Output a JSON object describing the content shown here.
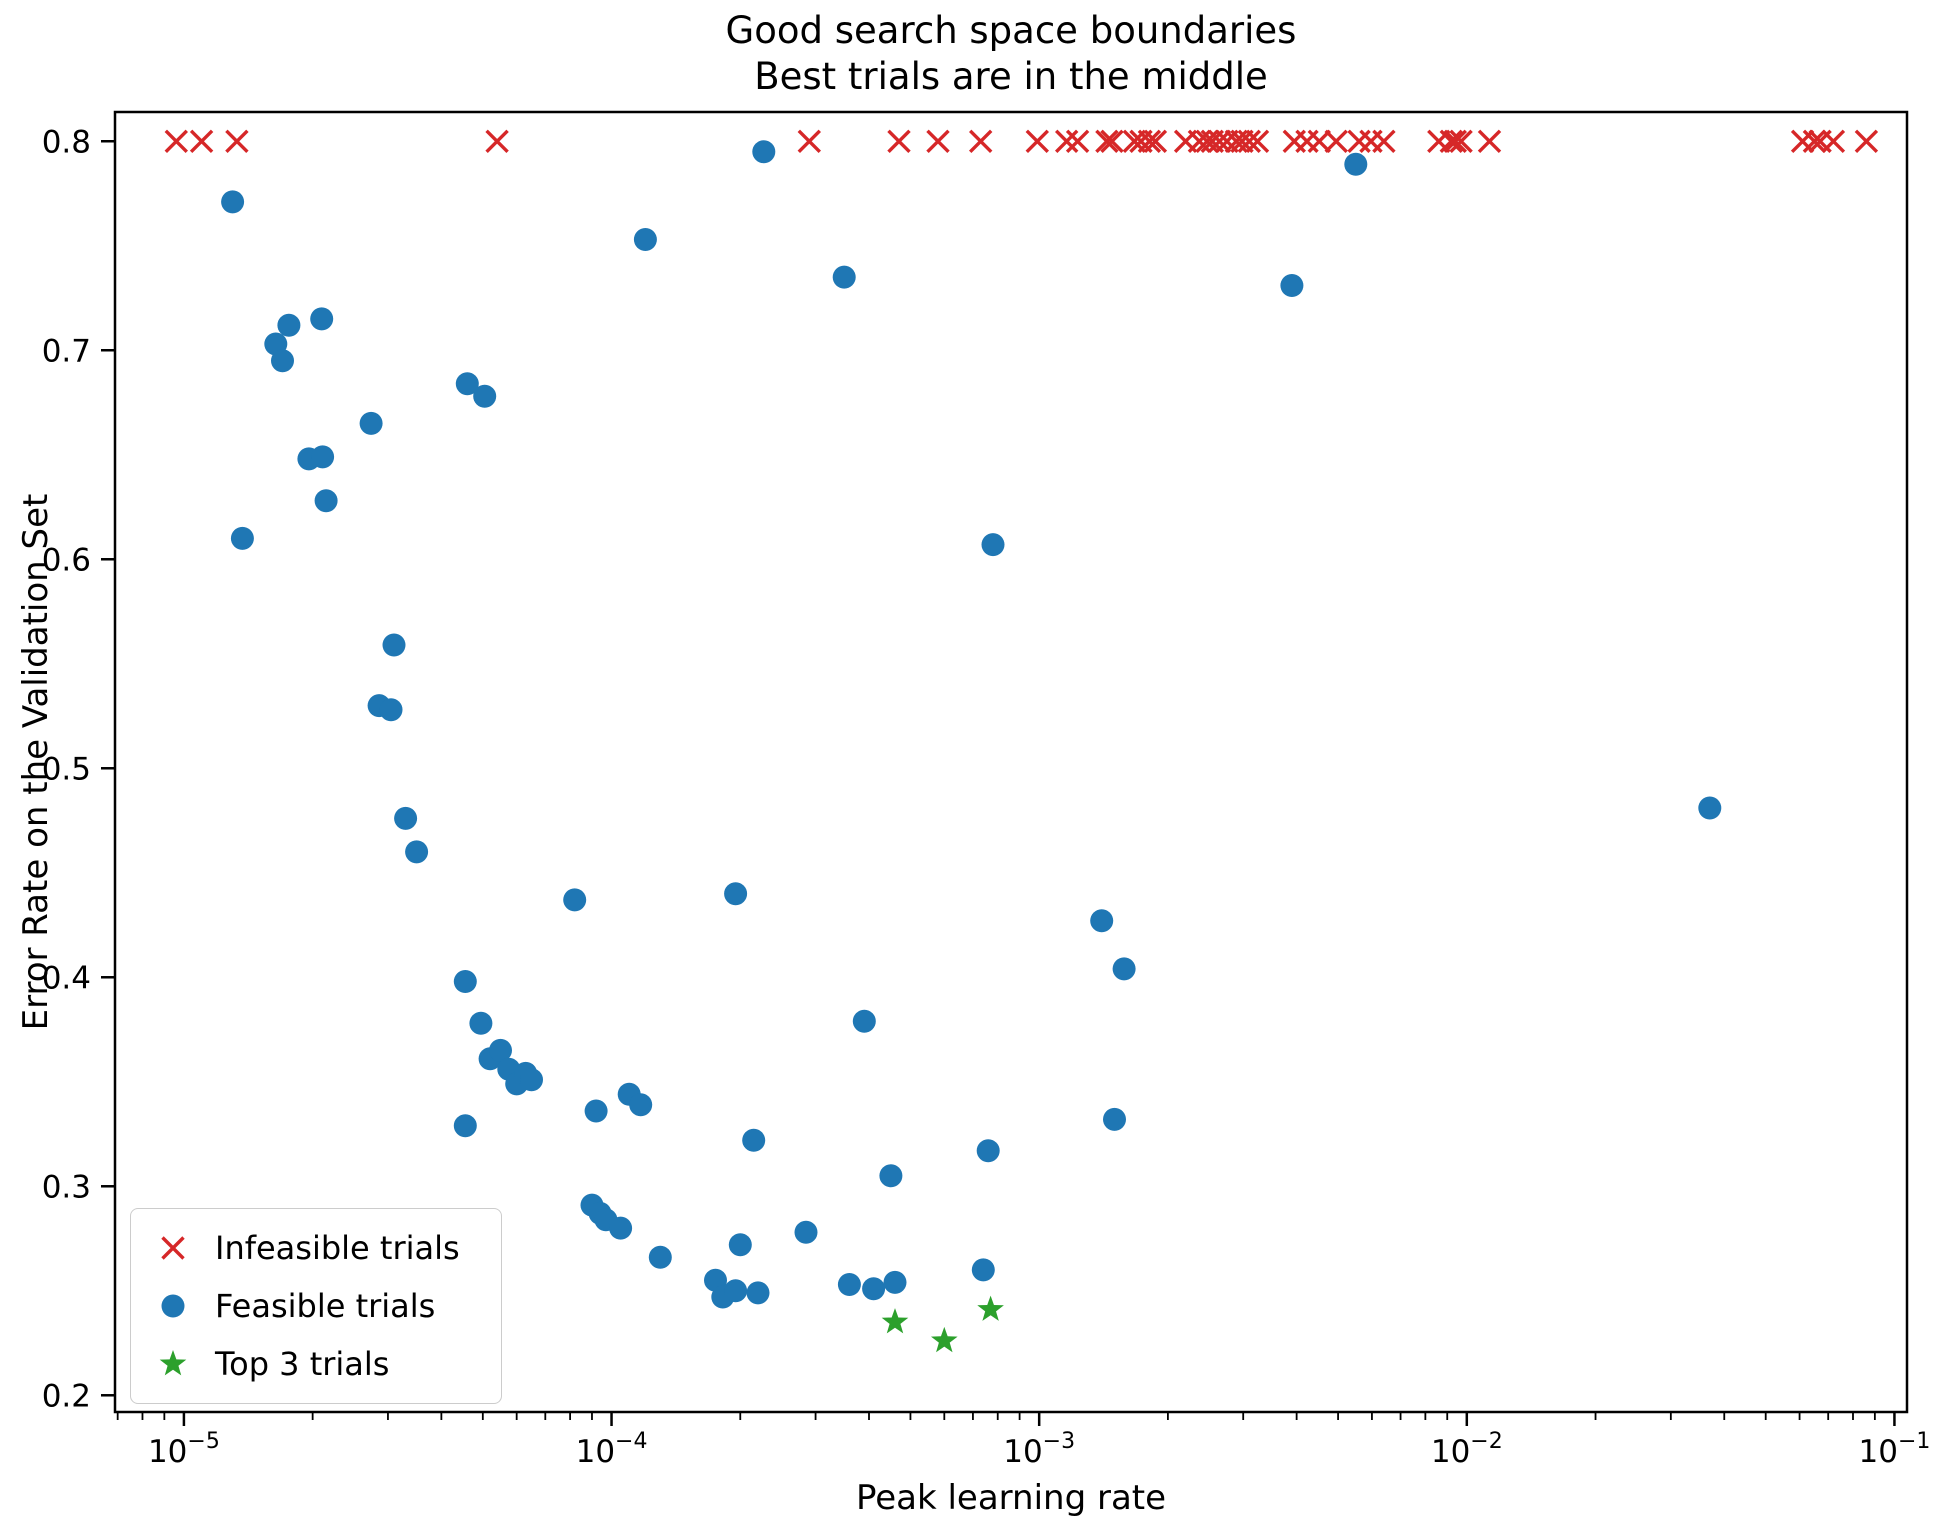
{
  "title_lines": [
    "Good search space boundaries",
    "Best trials are in the middle"
  ],
  "chart_data": {
    "type": "scatter",
    "title": "Good search space boundaries\nBest trials are in the middle",
    "xlabel": "Peak learning rate",
    "ylabel": "Error Rate on the Validation Set",
    "x_scale": "log",
    "y_scale": "linear",
    "xlim": [
      6.9e-06,
      0.107
    ],
    "ylim": [
      0.192,
      0.814
    ],
    "x_major_ticks": [
      1e-05,
      0.0001,
      0.001,
      0.01,
      0.1
    ],
    "x_minor_ticks_log": true,
    "y_ticks": [
      0.2,
      0.3,
      0.4,
      0.5,
      0.6,
      0.7,
      0.8
    ],
    "grid": false,
    "legend_position": "lower left",
    "series": [
      {
        "key": "infeasible",
        "name": "Infeasible trials",
        "marker": "x",
        "color": "#d62728",
        "points": [
          [
            9.6e-06,
            0.8
          ],
          [
            1.1e-05,
            0.8
          ],
          [
            1.33e-05,
            0.8
          ],
          [
            5.4e-05,
            0.8
          ],
          [
            0.00029,
            0.8
          ],
          [
            0.00047,
            0.8
          ],
          [
            0.00058,
            0.8
          ],
          [
            0.00073,
            0.8
          ],
          [
            0.00099,
            0.8
          ],
          [
            0.00116,
            0.8
          ],
          [
            0.00123,
            0.8
          ],
          [
            0.00144,
            0.8
          ],
          [
            0.00148,
            0.8
          ],
          [
            0.00167,
            0.8
          ],
          [
            0.00173,
            0.8
          ],
          [
            0.00181,
            0.8
          ],
          [
            0.00187,
            0.8
          ],
          [
            0.0022,
            0.8
          ],
          [
            0.00237,
            0.8
          ],
          [
            0.00247,
            0.8
          ],
          [
            0.00254,
            0.8
          ],
          [
            0.00264,
            0.8
          ],
          [
            0.00275,
            0.8
          ],
          [
            0.00289,
            0.8
          ],
          [
            0.00298,
            0.8
          ],
          [
            0.0031,
            0.8
          ],
          [
            0.00324,
            0.8
          ],
          [
            0.00395,
            0.8
          ],
          [
            0.00423,
            0.8
          ],
          [
            0.00452,
            0.8
          ],
          [
            0.00495,
            0.8
          ],
          [
            0.0056,
            0.8
          ],
          [
            0.00597,
            0.8
          ],
          [
            0.0064,
            0.8
          ],
          [
            0.0086,
            0.8
          ],
          [
            0.0092,
            0.8
          ],
          [
            0.0094,
            0.8
          ],
          [
            0.0097,
            0.8
          ],
          [
            0.0113,
            0.8
          ],
          [
            0.061,
            0.8
          ],
          [
            0.065,
            0.8
          ],
          [
            0.067,
            0.8
          ],
          [
            0.072,
            0.8
          ],
          [
            0.086,
            0.8
          ]
        ]
      },
      {
        "key": "feasible",
        "name": "Feasible trials",
        "marker": "circle",
        "color": "#1f77b4",
        "points": [
          [
            1.3e-05,
            0.771
          ],
          [
            1.37e-05,
            0.61
          ],
          [
            1.64e-05,
            0.703
          ],
          [
            1.7e-05,
            0.695
          ],
          [
            1.76e-05,
            0.712
          ],
          [
            2.1e-05,
            0.715
          ],
          [
            1.96e-05,
            0.648
          ],
          [
            2.11e-05,
            0.649
          ],
          [
            2.15e-05,
            0.628
          ],
          [
            2.74e-05,
            0.665
          ],
          [
            4.6e-05,
            0.684
          ],
          [
            5.05e-05,
            0.678
          ],
          [
            3.1e-05,
            0.559
          ],
          [
            2.86e-05,
            0.53
          ],
          [
            3.05e-05,
            0.528
          ],
          [
            3.3e-05,
            0.476
          ],
          [
            3.5e-05,
            0.46
          ],
          [
            0.00012,
            0.753
          ],
          [
            0.000227,
            0.795
          ],
          [
            0.00035,
            0.735
          ],
          [
            8.2e-05,
            0.437
          ],
          [
            0.000195,
            0.44
          ],
          [
            0.00078,
            0.607
          ],
          [
            4.55e-05,
            0.398
          ],
          [
            4.95e-05,
            0.378
          ],
          [
            5.2e-05,
            0.361
          ],
          [
            5.5e-05,
            0.365
          ],
          [
            5.75e-05,
            0.356
          ],
          [
            6e-05,
            0.349
          ],
          [
            6.3e-05,
            0.354
          ],
          [
            6.5e-05,
            0.351
          ],
          [
            4.55e-05,
            0.329
          ],
          [
            9.2e-05,
            0.336
          ],
          [
            0.00011,
            0.344
          ],
          [
            0.000117,
            0.339
          ],
          [
            0.000215,
            0.322
          ],
          [
            0.00039,
            0.379
          ],
          [
            9e-05,
            0.291
          ],
          [
            9.4e-05,
            0.287
          ],
          [
            9.7e-05,
            0.284
          ],
          [
            0.000105,
            0.28
          ],
          [
            0.00013,
            0.266
          ],
          [
            0.0002,
            0.272
          ],
          [
            0.000285,
            0.278
          ],
          [
            0.000175,
            0.255
          ],
          [
            0.000182,
            0.247
          ],
          [
            0.000195,
            0.25
          ],
          [
            0.00022,
            0.249
          ],
          [
            0.00036,
            0.253
          ],
          [
            0.00041,
            0.251
          ],
          [
            0.00046,
            0.254
          ],
          [
            0.00074,
            0.26
          ],
          [
            0.00045,
            0.305
          ],
          [
            0.00076,
            0.317
          ],
          [
            0.0014,
            0.427
          ],
          [
            0.00158,
            0.404
          ],
          [
            0.0015,
            0.332
          ],
          [
            0.0039,
            0.731
          ],
          [
            0.0055,
            0.789
          ],
          [
            0.037,
            0.481
          ]
        ]
      },
      {
        "key": "top3",
        "name": "Top 3 trials",
        "marker": "star",
        "color": "#2ca02c",
        "points": [
          [
            0.00046,
            0.235
          ],
          [
            0.0006,
            0.226
          ],
          [
            0.00077,
            0.241
          ]
        ]
      }
    ]
  }
}
